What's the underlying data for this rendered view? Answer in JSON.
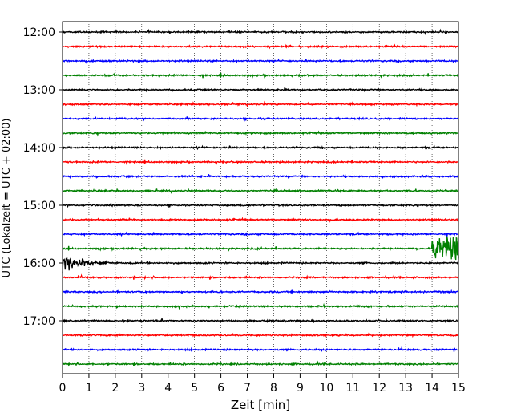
{
  "chart_data": {
    "type": "line",
    "title": "",
    "xlabel": "Zeit  [min]",
    "ylabel": "UTC (Lokalzeit = UTC + 02:00)",
    "xlim": [
      0,
      15
    ],
    "x_ticks": [
      "0",
      "1",
      "2",
      "3",
      "4",
      "5",
      "6",
      "7",
      "8",
      "9",
      "10",
      "11",
      "12",
      "13",
      "14",
      "15"
    ],
    "y_ticks": [
      "12:00",
      "13:00",
      "14:00",
      "15:00",
      "16:00",
      "17:00"
    ],
    "grid": "vertical dotted lines at each minute",
    "trace_interval_min": 15,
    "colors": {
      "cycle": [
        "#000000",
        "#ff0000",
        "#0000ff",
        "#008000"
      ]
    },
    "series": [
      {
        "start": "12:00",
        "color": "#000000"
      },
      {
        "start": "12:15",
        "color": "#ff0000"
      },
      {
        "start": "12:30",
        "color": "#0000ff"
      },
      {
        "start": "12:45",
        "color": "#008000"
      },
      {
        "start": "13:00",
        "color": "#000000"
      },
      {
        "start": "13:15",
        "color": "#ff0000"
      },
      {
        "start": "13:30",
        "color": "#0000ff"
      },
      {
        "start": "13:45",
        "color": "#008000"
      },
      {
        "start": "14:00",
        "color": "#000000"
      },
      {
        "start": "14:15",
        "color": "#ff0000"
      },
      {
        "start": "14:30",
        "color": "#0000ff"
      },
      {
        "start": "14:45",
        "color": "#008000"
      },
      {
        "start": "15:00",
        "color": "#000000"
      },
      {
        "start": "15:15",
        "color": "#ff0000"
      },
      {
        "start": "15:30",
        "color": "#0000ff"
      },
      {
        "start": "15:45",
        "color": "#008000",
        "event": {
          "from_min": 14.0,
          "to_min": 15.0,
          "amplitude": "large"
        }
      },
      {
        "start": "16:00",
        "color": "#000000",
        "event": {
          "from_min": 0.0,
          "to_min": 2.5,
          "amplitude": "large, decaying"
        }
      },
      {
        "start": "16:15",
        "color": "#ff0000"
      },
      {
        "start": "16:30",
        "color": "#0000ff"
      },
      {
        "start": "16:45",
        "color": "#008000"
      },
      {
        "start": "17:00",
        "color": "#000000"
      },
      {
        "start": "17:15",
        "color": "#ff0000"
      },
      {
        "start": "17:30",
        "color": "#0000ff"
      },
      {
        "start": "17:45",
        "color": "#008000"
      }
    ]
  }
}
